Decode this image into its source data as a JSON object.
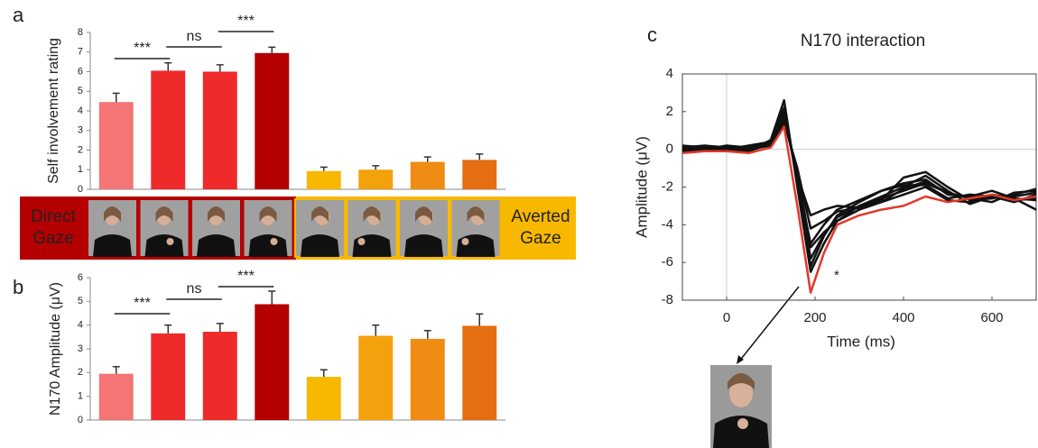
{
  "chart_data": [
    {
      "type": "bar",
      "panel_label": "a",
      "y_label": "Self involvement rating",
      "values": [
        4.45,
        6.05,
        6.0,
        6.95,
        0.93,
        1.0,
        1.4,
        1.5
      ],
      "errors": [
        0.45,
        0.4,
        0.35,
        0.3,
        0.2,
        0.2,
        0.25,
        0.3
      ],
      "colors": [
        "#f47575",
        "#ee2a2a",
        "#ee2a2a",
        "#b40000",
        "#f8b800",
        "#f3a10c",
        "#ef8c13",
        "#e56e12"
      ],
      "ylim": [
        0,
        8
      ],
      "yticks": [
        0,
        1,
        2,
        3,
        4,
        5,
        6,
        7,
        8
      ],
      "annotations": [
        "***",
        "ns",
        "***"
      ]
    },
    {
      "type": "bar",
      "panel_label": "b",
      "y_label": "N170 Amplitude (μV)",
      "values": [
        1.95,
        3.65,
        3.72,
        4.88,
        1.82,
        3.55,
        3.42,
        3.97
      ],
      "errors": [
        0.3,
        0.35,
        0.35,
        0.55,
        0.3,
        0.45,
        0.35,
        0.5
      ],
      "colors": [
        "#f47575",
        "#ee2a2a",
        "#ee2a2a",
        "#b40000",
        "#f8b800",
        "#f3a10c",
        "#ef8c13",
        "#e56e12"
      ],
      "ylim": [
        0,
        6
      ],
      "yticks": [
        0,
        1,
        2,
        3,
        4,
        5,
        6
      ],
      "annotations": [
        "***",
        "ns",
        "***"
      ]
    },
    {
      "type": "line",
      "panel_label": "c",
      "title": "N170 interaction",
      "x_label": "Time (ms)",
      "y_label": "Amplitude (μV)",
      "x": [
        -100,
        -50,
        0,
        50,
        100,
        130,
        160,
        190,
        220,
        250,
        300,
        350,
        400,
        450,
        500,
        550,
        600,
        650,
        700
      ],
      "series": [
        {
          "color": "#111111",
          "values": [
            0,
            0.1,
            0,
            -0.1,
            0.5,
            2.6,
            -2,
            -6.5,
            -5,
            -3.8,
            -3,
            -2.7,
            -1.5,
            -1.2,
            -2,
            -2.7,
            -2.6,
            -2.4,
            -2.1
          ]
        },
        {
          "color": "#111111",
          "values": [
            0.1,
            0.2,
            0.1,
            0,
            0.4,
            2.2,
            -1.8,
            -6.2,
            -4.6,
            -3.5,
            -2.8,
            -2.2,
            -1.8,
            -1.6,
            -2.4,
            -2.5,
            -2.2,
            -2.6,
            -3.2
          ]
        },
        {
          "color": "#111111",
          "values": [
            -0.1,
            0,
            0.2,
            0.1,
            0.3,
            1.8,
            -1.5,
            -5.8,
            -4.5,
            -3.6,
            -3,
            -2.5,
            -2,
            -1.4,
            -2.2,
            -2.9,
            -2.5,
            -2.8,
            -2.4
          ]
        },
        {
          "color": "#111111",
          "values": [
            0,
            0.1,
            -0.1,
            0,
            0.2,
            1.6,
            -1.2,
            -5.2,
            -4.4,
            -3.8,
            -3.2,
            -2.8,
            -2.1,
            -1.7,
            -2.3,
            -2.6,
            -2.8,
            -2.3,
            -2.2
          ]
        },
        {
          "color": "#111111",
          "values": [
            0.2,
            0.1,
            0,
            0.2,
            0.4,
            2,
            -1.6,
            -5,
            -4,
            -3.2,
            -2.7,
            -2.2,
            -1.9,
            -1.9,
            -2.6,
            -2.4,
            -2.5,
            -2.5,
            -2.3
          ]
        },
        {
          "color": "#111111",
          "values": [
            -0.1,
            0,
            0.1,
            -0.1,
            0.3,
            1.4,
            -1,
            -4.2,
            -3.8,
            -3.3,
            -3.1,
            -2.8,
            -2.4,
            -2,
            -2.7,
            -2.8,
            -2.4,
            -2.6,
            -2.7
          ]
        },
        {
          "color": "#111111",
          "values": [
            0,
            -0.1,
            0,
            0.1,
            0.2,
            1.7,
            -1.4,
            -3.5,
            -3.2,
            -3,
            -3.1,
            -2.6,
            -2.2,
            -1.8,
            -2.3,
            -2.6,
            -2.5,
            -2.7,
            -2.6
          ]
        },
        {
          "color": "#e0392b",
          "values": [
            -0.2,
            -0.1,
            -0.1,
            -0.2,
            0.1,
            1.2,
            -3,
            -7.6,
            -5.5,
            -4,
            -3.5,
            -3.2,
            -3,
            -2.5,
            -2.8,
            -2.6,
            -2.4,
            -2.7,
            -2.5
          ]
        }
      ],
      "xlim": [
        -100,
        700
      ],
      "xticks": [
        0,
        200,
        400,
        600
      ],
      "ylim": [
        -8,
        4
      ],
      "yticks": [
        -8,
        -6,
        -4,
        -2,
        0,
        2,
        4
      ],
      "annotation": "*"
    }
  ],
  "band": {
    "left": "Direct Gaze",
    "right": "Averted Gaze"
  }
}
